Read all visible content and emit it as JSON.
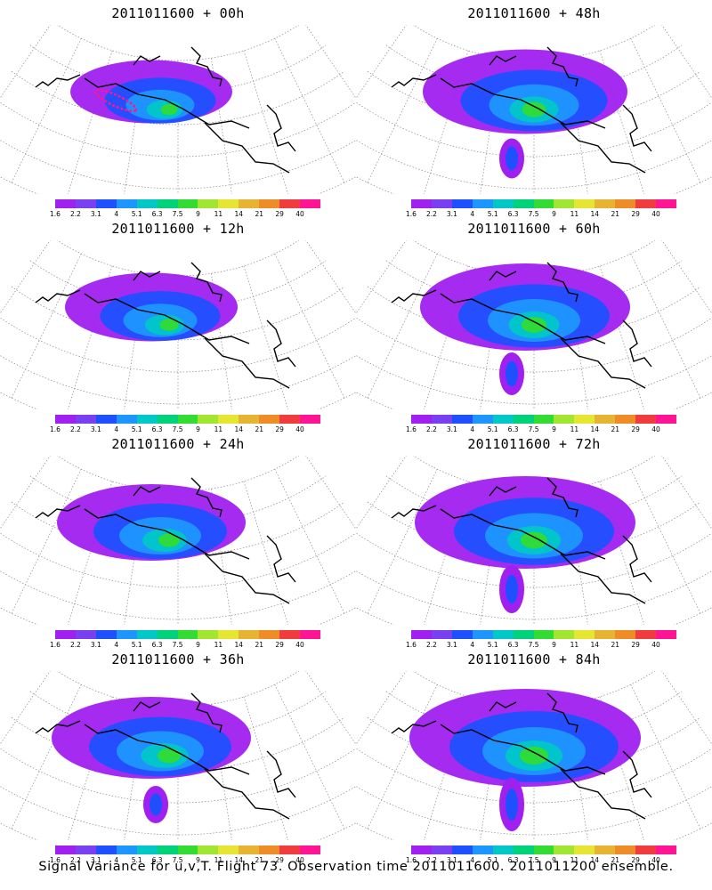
{
  "panels": [
    {
      "title": "2011011600 + 00h",
      "lead": "00h"
    },
    {
      "title": "2011011600 + 48h",
      "lead": "48h"
    },
    {
      "title": "2011011600 + 12h",
      "lead": "12h"
    },
    {
      "title": "2011011600 + 60h",
      "lead": "60h"
    },
    {
      "title": "2011011600 + 24h",
      "lead": "24h"
    },
    {
      "title": "2011011600 + 72h",
      "lead": "72h"
    },
    {
      "title": "2011011600 + 36h",
      "lead": "36h"
    },
    {
      "title": "2011011600 + 84h",
      "lead": "84h"
    }
  ],
  "colorbar": {
    "labels": [
      "1.6",
      "2.2",
      "3.1",
      "4",
      "5.1",
      "6.3",
      "7.5",
      "9",
      "11",
      "14",
      "21",
      "29",
      "40"
    ],
    "colors": [
      "#a020f0",
      "#7b3ff2",
      "#1e50ff",
      "#1e96ff",
      "#00c8c8",
      "#00d27a",
      "#32dc32",
      "#a0e632",
      "#e6e632",
      "#e6b432",
      "#f08c28",
      "#f03c3c",
      "#ff1493"
    ]
  },
  "footer": {
    "caption": "Signal Variance for u,v,T. Flight 73. Observation time 2011011600. 2011011200 ensemble."
  }
}
